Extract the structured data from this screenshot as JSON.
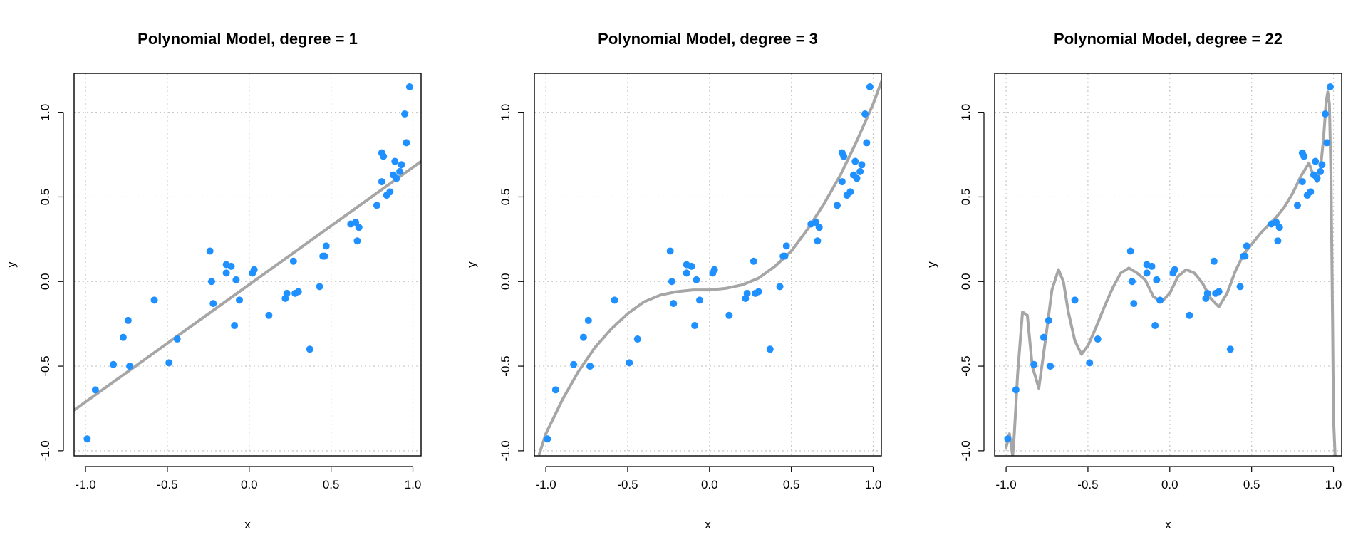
{
  "chart_data": [
    {
      "type": "scatter",
      "title": "Polynomial Model, degree = 1",
      "xlabel": "x",
      "ylabel": "y",
      "xlim": [
        -1.07,
        1.05
      ],
      "ylim": [
        -1.03,
        1.23
      ],
      "xticks": [
        -1.0,
        -0.5,
        0.0,
        0.5,
        1.0
      ],
      "xtick_labels": [
        "-1.0",
        "-0.5",
        "0.0",
        "0.5",
        "1.0"
      ],
      "yticks": [
        -1.0,
        -0.5,
        0.0,
        0.5,
        1.0
      ],
      "ytick_labels": [
        "-1.0",
        "-0.5",
        "0.0",
        "0.5",
        "1.0"
      ],
      "grid": true,
      "point_color": "#1e90ff",
      "line_color": "#a6a6a6",
      "fit": {
        "degree": 1,
        "x": [
          -1.07,
          1.05
        ],
        "y": [
          -0.76,
          0.71
        ]
      }
    },
    {
      "type": "scatter",
      "title": "Polynomial Model, degree = 3",
      "xlabel": "x",
      "ylabel": "y",
      "xlim": [
        -1.07,
        1.05
      ],
      "ylim": [
        -1.03,
        1.23
      ],
      "xticks": [
        -1.0,
        -0.5,
        0.0,
        0.5,
        1.0
      ],
      "xtick_labels": [
        "-1.0",
        "-0.5",
        "0.0",
        "0.5",
        "1.0"
      ],
      "yticks": [
        -1.0,
        -0.5,
        0.0,
        0.5,
        1.0
      ],
      "ytick_labels": [
        "-1.0",
        "-0.5",
        "0.0",
        "0.5",
        "1.0"
      ],
      "grid": true,
      "point_color": "#1e90ff",
      "line_color": "#a6a6a6",
      "fit": {
        "degree": 3,
        "x": [
          -1.04,
          -1.0,
          -0.9,
          -0.8,
          -0.7,
          -0.6,
          -0.5,
          -0.4,
          -0.3,
          -0.2,
          -0.1,
          0.0,
          0.1,
          0.2,
          0.3,
          0.4,
          0.5,
          0.6,
          0.7,
          0.8,
          0.9,
          1.0,
          1.05
        ],
        "y": [
          -1.02,
          -0.9,
          -0.7,
          -0.53,
          -0.39,
          -0.28,
          -0.19,
          -0.12,
          -0.08,
          -0.06,
          -0.05,
          -0.05,
          -0.04,
          -0.02,
          0.02,
          0.09,
          0.18,
          0.31,
          0.46,
          0.63,
          0.83,
          1.05,
          1.18
        ]
      }
    },
    {
      "type": "scatter",
      "title": "Polynomial Model, degree = 22",
      "xlabel": "x",
      "ylabel": "y",
      "xlim": [
        -1.07,
        1.05
      ],
      "ylim": [
        -1.03,
        1.23
      ],
      "xticks": [
        -1.0,
        -0.5,
        0.0,
        0.5,
        1.0
      ],
      "xtick_labels": [
        "-1.0",
        "-0.5",
        "0.0",
        "0.5",
        "1.0"
      ],
      "yticks": [
        -1.0,
        -0.5,
        0.0,
        0.5,
        1.0
      ],
      "ytick_labels": [
        "-1.0",
        "-0.5",
        "0.0",
        "0.5",
        "1.0"
      ],
      "grid": true,
      "point_color": "#1e90ff",
      "line_color": "#a6a6a6",
      "fit": {
        "degree": 22,
        "x": [
          -1.0,
          -0.98,
          -0.96,
          -0.95,
          -0.93,
          -0.9,
          -0.87,
          -0.84,
          -0.8,
          -0.76,
          -0.72,
          -0.68,
          -0.65,
          -0.62,
          -0.58,
          -0.54,
          -0.5,
          -0.45,
          -0.4,
          -0.35,
          -0.3,
          -0.25,
          -0.2,
          -0.15,
          -0.1,
          -0.05,
          0.0,
          0.05,
          0.1,
          0.15,
          0.2,
          0.25,
          0.3,
          0.35,
          0.4,
          0.45,
          0.5,
          0.55,
          0.6,
          0.65,
          0.7,
          0.75,
          0.8,
          0.85,
          0.88,
          0.9,
          0.92,
          0.94,
          0.955,
          0.965,
          0.975,
          0.985,
          0.995,
          1.0,
          1.01
        ],
        "y": [
          -0.98,
          -0.9,
          -1.03,
          -0.9,
          -0.55,
          -0.18,
          -0.2,
          -0.5,
          -0.63,
          -0.35,
          -0.05,
          0.07,
          0.0,
          -0.18,
          -0.35,
          -0.43,
          -0.38,
          -0.27,
          -0.15,
          -0.04,
          0.05,
          0.08,
          0.05,
          0.01,
          -0.09,
          -0.12,
          -0.07,
          0.03,
          0.07,
          0.05,
          -0.01,
          -0.1,
          -0.15,
          -0.07,
          0.06,
          0.16,
          0.22,
          0.28,
          0.33,
          0.38,
          0.44,
          0.52,
          0.62,
          0.7,
          0.62,
          0.59,
          0.66,
          0.85,
          1.06,
          1.12,
          1.05,
          0.6,
          -0.3,
          -0.8,
          -1.03
        ]
      }
    }
  ],
  "points": {
    "x": [
      -0.99,
      -0.94,
      -0.83,
      -0.77,
      -0.74,
      -0.73,
      -0.58,
      -0.49,
      -0.44,
      -0.24,
      -0.23,
      -0.22,
      -0.14,
      -0.14,
      -0.11,
      -0.09,
      -0.08,
      -0.06,
      0.02,
      0.03,
      0.12,
      0.22,
      0.23,
      0.27,
      0.28,
      0.3,
      0.37,
      0.43,
      0.45,
      0.46,
      0.47,
      0.62,
      0.65,
      0.66,
      0.67,
      0.78,
      0.81,
      0.81,
      0.82,
      0.84,
      0.86,
      0.88,
      0.89,
      0.9,
      0.92,
      0.93,
      0.95,
      0.96,
      0.98
    ],
    "y": [
      -0.93,
      -0.64,
      -0.49,
      -0.33,
      -0.23,
      -0.5,
      -0.11,
      -0.48,
      -0.34,
      0.18,
      0.0,
      -0.13,
      0.1,
      0.05,
      0.09,
      -0.26,
      0.01,
      -0.11,
      0.05,
      0.07,
      -0.2,
      -0.1,
      -0.07,
      0.12,
      -0.07,
      -0.06,
      -0.4,
      -0.03,
      0.15,
      0.15,
      0.21,
      0.34,
      0.35,
      0.24,
      0.32,
      0.45,
      0.76,
      0.59,
      0.74,
      0.51,
      0.53,
      0.63,
      0.71,
      0.61,
      0.65,
      0.69,
      0.99,
      0.82,
      1.15
    ]
  }
}
